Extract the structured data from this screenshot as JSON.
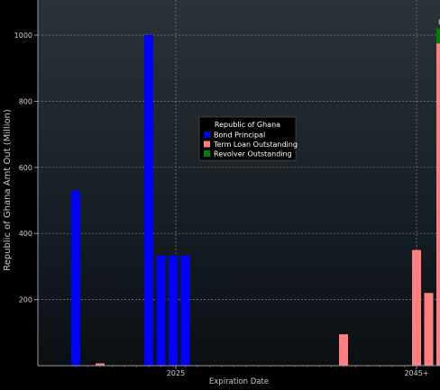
{
  "chart_data": {
    "type": "bar",
    "title": "",
    "ylabel": "Republic of Ghana Amt Out (Million)",
    "xlabel": "Expiration Date",
    "ylim": [
      0,
      1100
    ],
    "yticks": [
      200,
      400,
      600,
      800,
      1000
    ],
    "xtick_labels": [
      "2025",
      "2045+"
    ],
    "grid": true,
    "legend": {
      "title": "Republic of Ghana",
      "placement": "center",
      "entries": [
        {
          "label": "Bond Principal",
          "color": "#0000ff"
        },
        {
          "label": "Term Loan Outstanding",
          "color": "#ff8080"
        },
        {
          "label": "Revolver Outstanding",
          "color": "#008000"
        }
      ]
    },
    "series": [
      {
        "name": "Bond Principal",
        "color": "#0000ff",
        "points": [
          {
            "year": 2017,
            "value": 530
          },
          {
            "year": 2023,
            "value": 1000
          },
          {
            "year": 2024,
            "value": 333
          },
          {
            "year": 2025,
            "value": 333
          },
          {
            "year": 2026,
            "value": 333
          }
        ]
      },
      {
        "name": "Term Loan Outstanding",
        "color": "#ff8080",
        "points": [
          {
            "year": 2019,
            "value": 7
          },
          {
            "year": 2039,
            "value": 95
          },
          {
            "year": 2045,
            "value": 350
          },
          {
            "year": 2046,
            "value": 220
          },
          {
            "year": 2047,
            "value": 975
          }
        ]
      },
      {
        "name": "Revolver Outstanding",
        "color": "#008000",
        "points": [
          {
            "year": 2047,
            "value": 45
          }
        ]
      }
    ],
    "annotations": [
      {
        "text": "U",
        "year": 2047
      }
    ]
  }
}
